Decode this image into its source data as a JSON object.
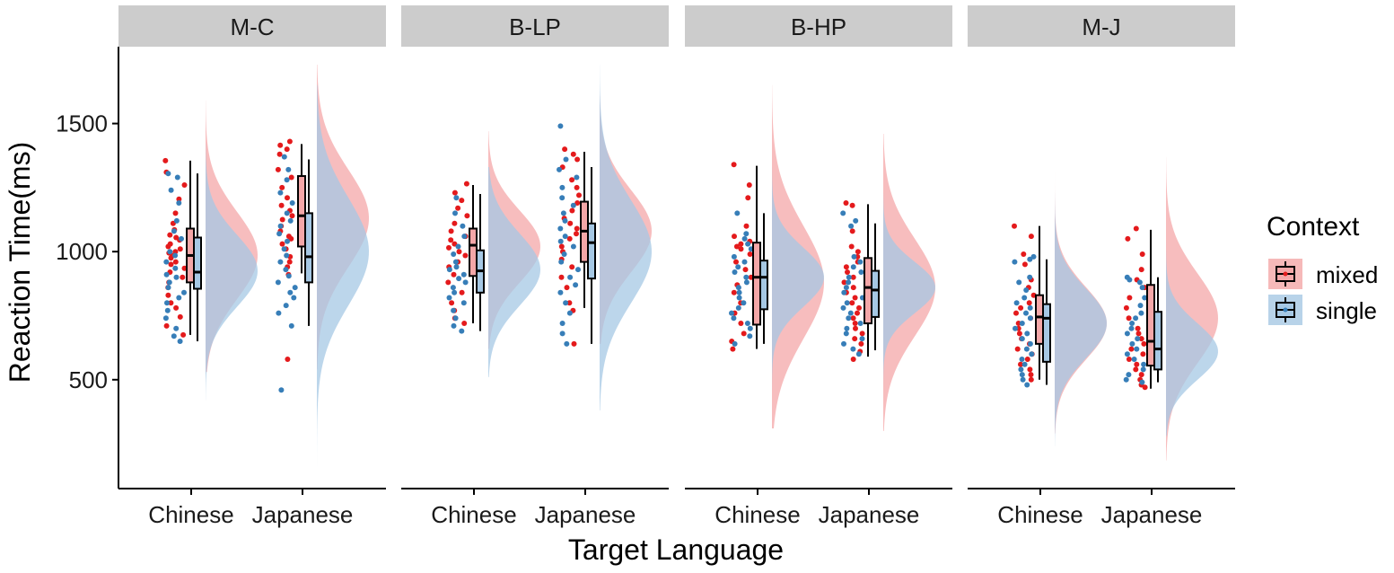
{
  "chart_data": {
    "type": "raincloud",
    "xlabel": "Target Language",
    "ylabel": "Reaction Time(ms)",
    "ylim": [
      75,
      1800
    ],
    "yticks": [
      500,
      1000,
      1500
    ],
    "ytick_labels": [
      "500",
      "1000",
      "1500"
    ],
    "grid": false,
    "legend": {
      "title": "Context",
      "position": "right",
      "entries": [
        {
          "label": "mixed",
          "color": "#E41A1C",
          "fill": "#F4A7A8"
        },
        {
          "label": "single",
          "color": "#377EB8",
          "fill": "#A6C8E4"
        }
      ]
    },
    "categories": [
      "Chinese",
      "Japanese"
    ],
    "panels": [
      {
        "label": "M-C",
        "groups": [
          {
            "language": "Chinese",
            "mixed": {
              "box": {
                "q1": 880,
                "median": 985,
                "q3": 1090,
                "lo": 675,
                "hi": 1355
              },
              "density": {
                "mean": 985,
                "sd": 170,
                "range": [
                  530,
                  1590
                ]
              },
              "points": [
                1355,
                1310,
                1260,
                1205,
                1150,
                1110,
                1085,
                1065,
                1055,
                1045,
                1030,
                1020,
                1010,
                1000,
                995,
                985,
                975,
                960,
                950,
                935,
                920,
                900,
                880,
                860,
                830,
                800,
                780,
                745,
                710,
                675
              ]
            },
            "single": {
              "box": {
                "q1": 855,
                "median": 920,
                "q3": 1055,
                "lo": 650,
                "hi": 1305
              },
              "density": {
                "mean": 925,
                "sd": 140,
                "range": [
                  420,
                  1420
                ]
              },
              "points": [
                1305,
                1290,
                1240,
                1190,
                1120,
                1080,
                1050,
                1000,
                985,
                960,
                935,
                910,
                900,
                880,
                860,
                840,
                820,
                800,
                770,
                740,
                700,
                670,
                650
              ]
            }
          },
          {
            "language": "Japanese",
            "mixed": {
              "box": {
                "q1": 1020,
                "median": 1140,
                "q3": 1295,
                "lo": 915,
                "hi": 1420
              },
              "density": {
                "mean": 1130,
                "sd": 190,
                "range": [
                  540,
                  1730
                ]
              },
              "points": [
                1430,
                1415,
                1400,
                1380,
                1320,
                1290,
                1250,
                1210,
                1180,
                1160,
                1140,
                1125,
                1100,
                1080,
                1060,
                1050,
                1030,
                1010,
                980,
                960,
                940,
                910,
                580
              ]
            },
            "single": {
              "box": {
                "q1": 880,
                "median": 980,
                "q3": 1150,
                "lo": 710,
                "hi": 1360
              },
              "density": {
                "mean": 1000,
                "sd": 210,
                "range": [
                  160,
                  1650
                ]
              },
              "points": [
                1370,
                1320,
                1280,
                1230,
                1190,
                1150,
                1120,
                1100,
                1070,
                1040,
                1010,
                985,
                960,
                930,
                905,
                880,
                860,
                840,
                820,
                790,
                760,
                710,
                460
              ]
            }
          }
        ]
      },
      {
        "label": "B-LP",
        "groups": [
          {
            "language": "Chinese",
            "mixed": {
              "box": {
                "q1": 905,
                "median": 1025,
                "q3": 1090,
                "lo": 720,
                "hi": 1260
              },
              "density": {
                "mean": 1020,
                "sd": 140,
                "range": [
                  620,
                  1470
                ]
              },
              "points": [
                1265,
                1230,
                1200,
                1170,
                1140,
                1110,
                1080,
                1060,
                1045,
                1030,
                1015,
                1000,
                985,
                960,
                940,
                910,
                880,
                840,
                800,
                770,
                740,
                720
              ]
            },
            "single": {
              "box": {
                "q1": 840,
                "median": 925,
                "q3": 1005,
                "lo": 690,
                "hi": 1225
              },
              "density": {
                "mean": 930,
                "sd": 140,
                "range": [
                  510,
                  1330
                ]
              },
              "points": [
                1210,
                1150,
                1100,
                1060,
                1020,
                990,
                960,
                940,
                930,
                910,
                895,
                880,
                860,
                840,
                820,
                800,
                770,
                740,
                710,
                690
              ]
            }
          },
          {
            "language": "Japanese",
            "mixed": {
              "box": {
                "q1": 960,
                "median": 1080,
                "q3": 1195,
                "lo": 780,
                "hi": 1390
              },
              "density": {
                "mean": 1080,
                "sd": 160,
                "range": [
                  640,
                  1610
                ]
              },
              "points": [
                1400,
                1380,
                1360,
                1330,
                1280,
                1250,
                1220,
                1190,
                1160,
                1130,
                1110,
                1090,
                1070,
                1050,
                1020,
                1000,
                970,
                940,
                900,
                860,
                800,
                770,
                640
              ]
            },
            "single": {
              "box": {
                "q1": 895,
                "median": 1035,
                "q3": 1110,
                "lo": 640,
                "hi": 1330
              },
              "density": {
                "mean": 1000,
                "sd": 200,
                "range": [
                  380,
                  1730
                ]
              },
              "points": [
                1490,
                1360,
                1320,
                1290,
                1250,
                1210,
                1180,
                1150,
                1120,
                1090,
                1060,
                1040,
                1020,
                990,
                960,
                930,
                900,
                870,
                840,
                800,
                760,
                720,
                680,
                640
              ]
            }
          }
        ]
      },
      {
        "label": "B-HP",
        "groups": [
          {
            "language": "Chinese",
            "mixed": {
              "box": {
                "q1": 715,
                "median": 900,
                "q3": 1035,
                "lo": 620,
                "hi": 1335
              },
              "density": {
                "mean": 880,
                "sd": 220,
                "range": [
                  310,
                  1650
                ]
              },
              "points": [
                1340,
                1260,
                1210,
                1100,
                1060,
                1040,
                1030,
                1020,
                1010,
                990,
                960,
                930,
                900,
                870,
                840,
                800,
                760,
                720,
                680,
                650,
                620
              ]
            },
            "single": {
              "box": {
                "q1": 775,
                "median": 900,
                "q3": 965,
                "lo": 640,
                "hi": 1150
              },
              "density": {
                "mean": 900,
                "sd": 115,
                "range": [
                  460,
                  1330
                ]
              },
              "points": [
                1150,
                1070,
                1050,
                1030,
                1010,
                980,
                960,
                940,
                920,
                900,
                880,
                860,
                840,
                820,
                800,
                780,
                760,
                740,
                720,
                700,
                670,
                640
              ]
            }
          },
          {
            "language": "Japanese",
            "mixed": {
              "box": {
                "q1": 720,
                "median": 860,
                "q3": 975,
                "lo": 590,
                "hi": 1185
              },
              "density": {
                "mean": 860,
                "sd": 190,
                "range": [
                  300,
                  1460
                ]
              },
              "points": [
                1190,
                1180,
                1080,
                1020,
                1000,
                980,
                960,
                940,
                920,
                900,
                880,
                860,
                840,
                820,
                800,
                780,
                760,
                740,
                720,
                700,
                680,
                660,
                640,
                610,
                580
              ]
            },
            "single": {
              "box": {
                "q1": 745,
                "median": 850,
                "q3": 925,
                "lo": 615,
                "hi": 1110
              },
              "density": {
                "mean": 860,
                "sd": 100,
                "range": [
                  400,
                  1230
                ]
              },
              "points": [
                1150,
                1120,
                1100,
                980,
                960,
                940,
                920,
                900,
                880,
                860,
                840,
                820,
                800,
                780,
                760,
                740,
                720,
                700,
                680,
                660,
                640,
                620,
                600
              ]
            }
          }
        ]
      },
      {
        "label": "M-J",
        "groups": [
          {
            "language": "Chinese",
            "mixed": {
              "box": {
                "q1": 640,
                "median": 745,
                "q3": 830,
                "lo": 500,
                "hi": 1100
              },
              "density": {
                "mean": 720,
                "sd": 140,
                "range": [
                  290,
                  1310
                ]
              },
              "points": [
                1100,
                1060,
                990,
                950,
                890,
                860,
                830,
                800,
                780,
                760,
                740,
                720,
                700,
                680,
                660,
                640,
                620,
                600,
                580,
                560,
                540,
                520,
                500
              ]
            },
            "single": {
              "box": {
                "q1": 570,
                "median": 740,
                "q3": 795,
                "lo": 480,
                "hi": 970
              },
              "density": {
                "mean": 720,
                "sd": 135,
                "range": [
                  240,
                  1230
                ]
              },
              "points": [
                980,
                970,
                960,
                900,
                880,
                850,
                820,
                800,
                780,
                760,
                740,
                720,
                700,
                680,
                660,
                640,
                620,
                600,
                580,
                560,
                540,
                520,
                500,
                480
              ]
            }
          },
          {
            "language": "Japanese",
            "mixed": {
              "box": {
                "q1": 555,
                "median": 650,
                "q3": 870,
                "lo": 465,
                "hi": 1085
              },
              "density": {
                "mean": 740,
                "sd": 175,
                "range": [
                  185,
                  1370
                ]
              },
              "points": [
                1090,
                1050,
                990,
                930,
                890,
                860,
                820,
                780,
                740,
                700,
                680,
                660,
                640,
                620,
                600,
                580,
                560,
                540,
                520,
                500,
                480,
                470
              ]
            },
            "single": {
              "box": {
                "q1": 540,
                "median": 620,
                "q3": 765,
                "lo": 490,
                "hi": 900
              },
              "density": {
                "mean": 610,
                "sd": 110,
                "range": [
                  280,
                  1170
                ]
              },
              "points": [
                900,
                890,
                880,
                860,
                820,
                790,
                760,
                740,
                720,
                700,
                680,
                660,
                640,
                620,
                600,
                580,
                560,
                540,
                520,
                500,
                490
              ]
            }
          }
        ]
      }
    ]
  }
}
